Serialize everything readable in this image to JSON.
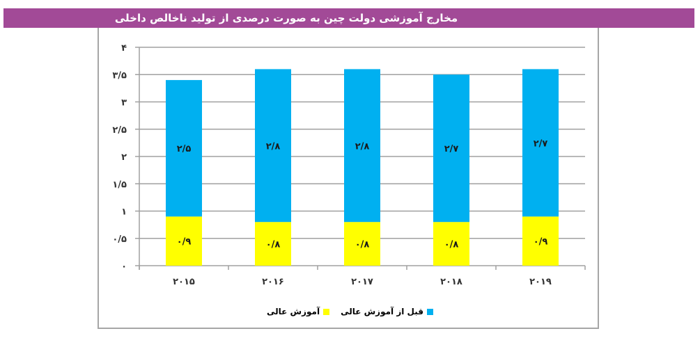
{
  "header": {
    "title": "مخارج آموزشی دولت چین به صورت درصدی از تولید ناخالص داخلی",
    "background": "#a24a97"
  },
  "chart_data": {
    "type": "bar",
    "stacked": true,
    "title": "مخارج آموزشی دولت چین به صورت درصدی از تولید ناخالص داخلی",
    "xlabel": "",
    "ylabel": "",
    "categories": [
      "2015",
      "2016",
      "2017",
      "2018",
      "2019"
    ],
    "category_labels": [
      "۲۰۱۵",
      "۲۰۱۶",
      "۲۰۱۷",
      "۲۰۱۸",
      "۲۰۱۹"
    ],
    "series": [
      {
        "name": "آموزش عالی",
        "color": "#ffff00",
        "values": [
          0.9,
          0.8,
          0.8,
          0.8,
          0.9
        ],
        "labels": [
          "۰/۹",
          "۰/۸",
          "۰/۸",
          "۰/۸",
          "۰/۹"
        ]
      },
      {
        "name": "قبل از آموزش عالی",
        "color": "#00b0f0",
        "values": [
          2.5,
          2.8,
          2.8,
          2.7,
          2.7
        ],
        "labels": [
          "۲/۵",
          "۲/۸",
          "۲/۸",
          "۲/۷",
          "۲/۷"
        ]
      }
    ],
    "ylim": [
      0,
      4
    ],
    "yticks": [
      0,
      0.5,
      1,
      1.5,
      2,
      2.5,
      3,
      3.5,
      4
    ],
    "ytick_labels": [
      "۰",
      "۰/۵",
      "۱",
      "۱/۵",
      "۲",
      "۲/۵",
      "۳",
      "۳/۵",
      "۴"
    ],
    "grid": true,
    "legend_position": "bottom"
  },
  "legend": {
    "items": [
      {
        "label": "قبل از آموزش عالی",
        "color": "#00b0f0"
      },
      {
        "label": "آموزش عالی",
        "color": "#ffff00"
      }
    ]
  }
}
